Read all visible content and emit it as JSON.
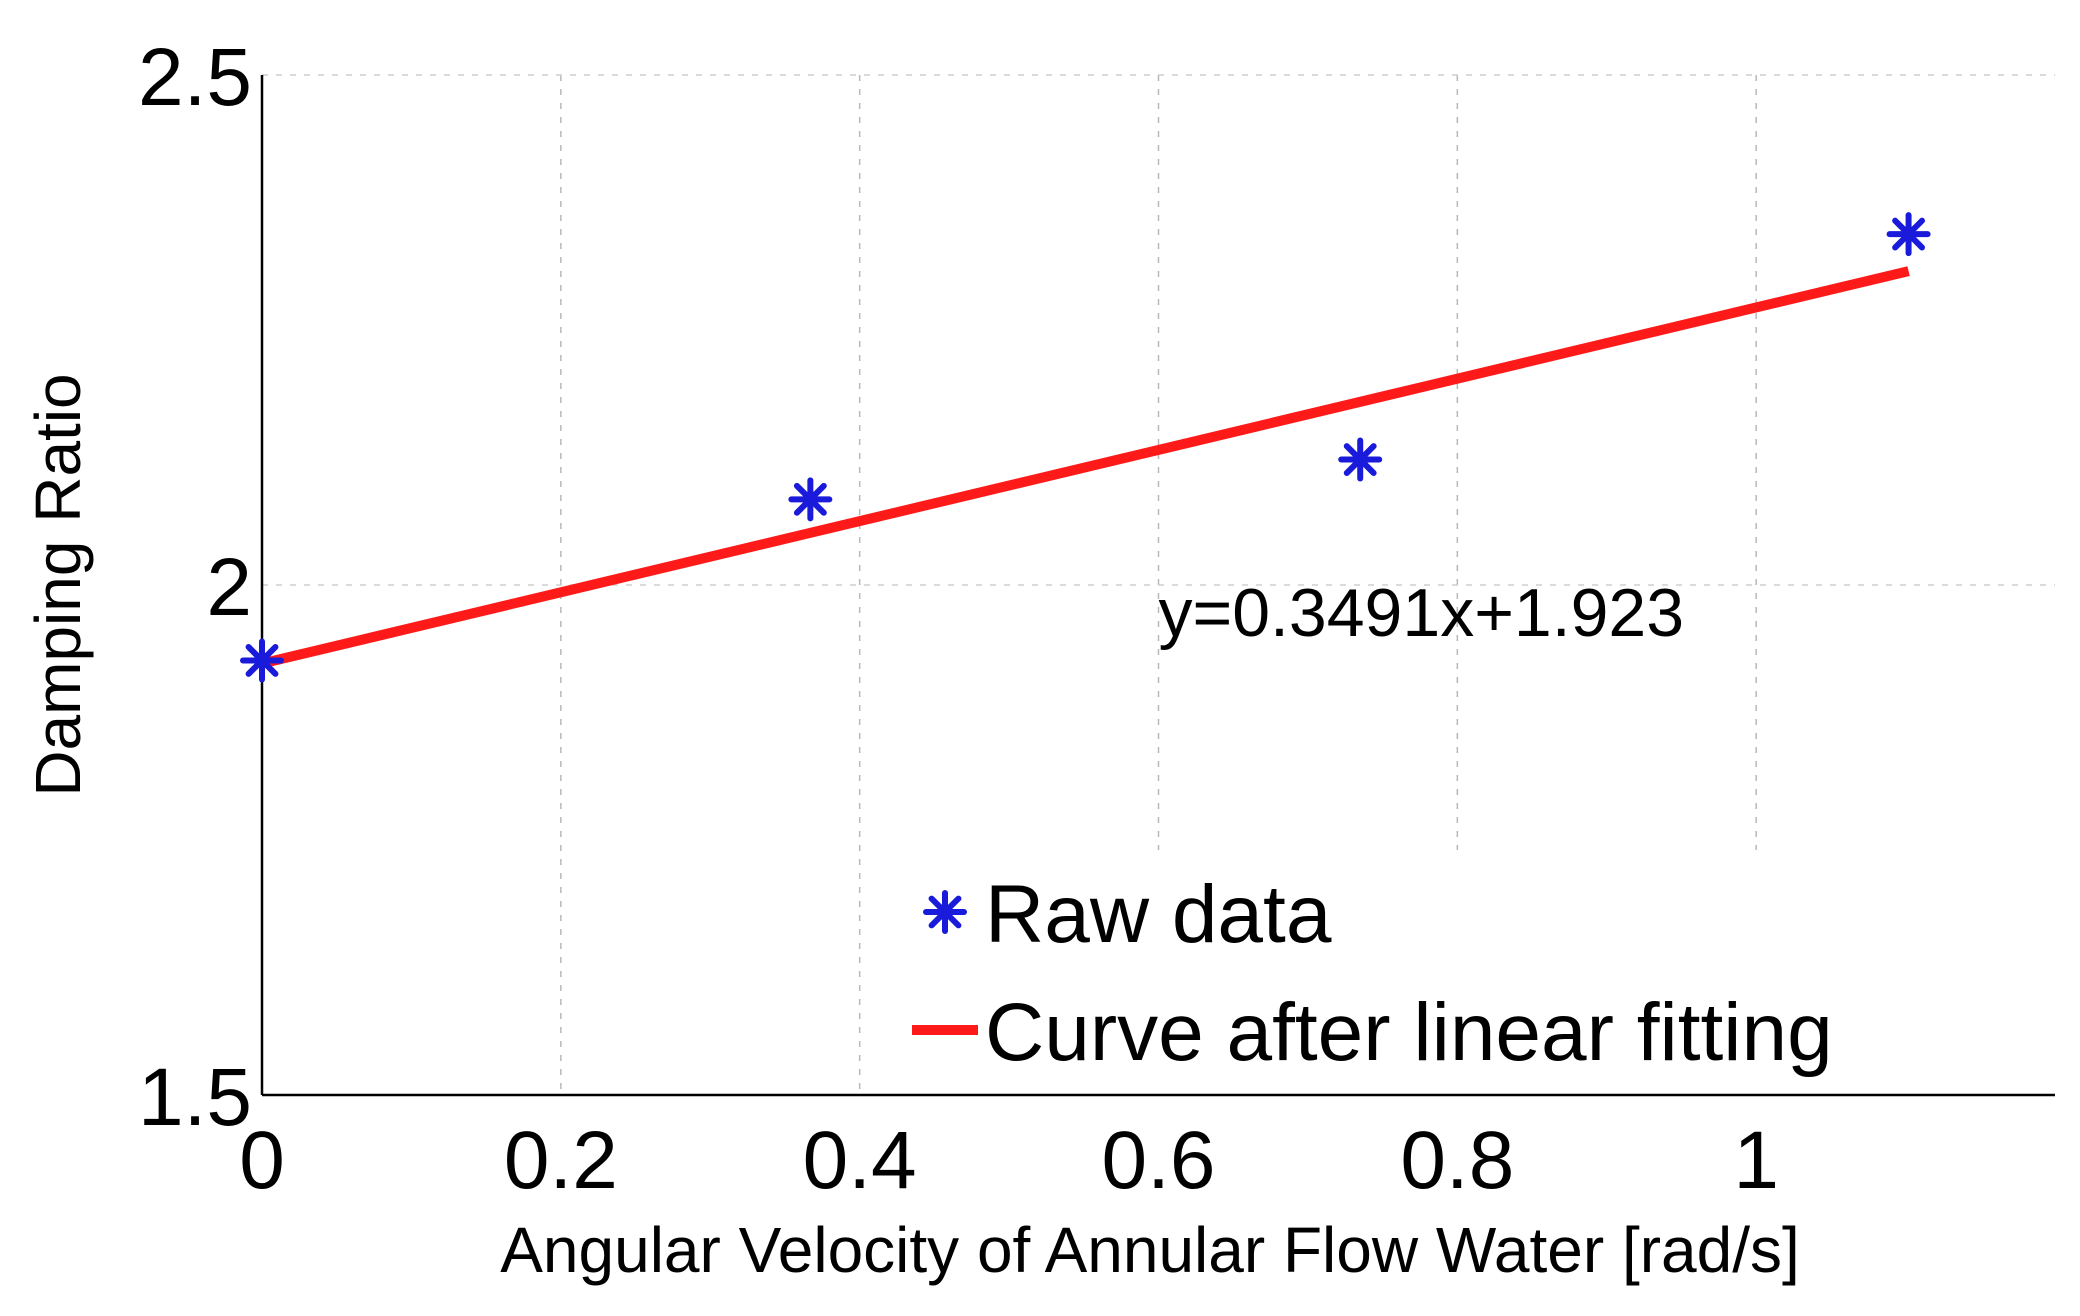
{
  "chart_data": {
    "type": "scatter",
    "title": "",
    "xlabel": "Angular Velocity of Annular Flow Water [rad/s]",
    "ylabel": "Damping Ratio",
    "xlim": [
      0,
      1.2
    ],
    "ylim": [
      1.5,
      2.5
    ],
    "xticks": [
      0,
      0.2,
      0.4,
      0.6,
      0.8,
      1
    ],
    "xtick_labels": [
      "0",
      "0.2",
      "0.4",
      "0.6",
      "0.8",
      "1"
    ],
    "yticks": [
      1.5,
      2,
      2.5
    ],
    "ytick_labels": [
      "1.5",
      "2",
      "2.5"
    ],
    "grid": true,
    "series": [
      {
        "name": "Raw data",
        "type": "scatter",
        "marker": "asterisk",
        "color": "#1a1adb",
        "x": [
          0,
          0.367,
          0.735,
          1.102
        ],
        "y": [
          1.926,
          2.084,
          2.123,
          2.344
        ]
      },
      {
        "name": "Curve after linear fitting",
        "type": "line",
        "color": "#ff1a1a",
        "x": [
          0,
          1.102
        ],
        "y": [
          1.923,
          2.3077
        ]
      }
    ],
    "annotation": {
      "text": "y=0.3491x+1.923",
      "x": 0.6,
      "y": 1.95
    },
    "legend": {
      "position": "bottom-right",
      "entries": [
        "Raw data",
        "Curve after linear fitting"
      ]
    }
  }
}
